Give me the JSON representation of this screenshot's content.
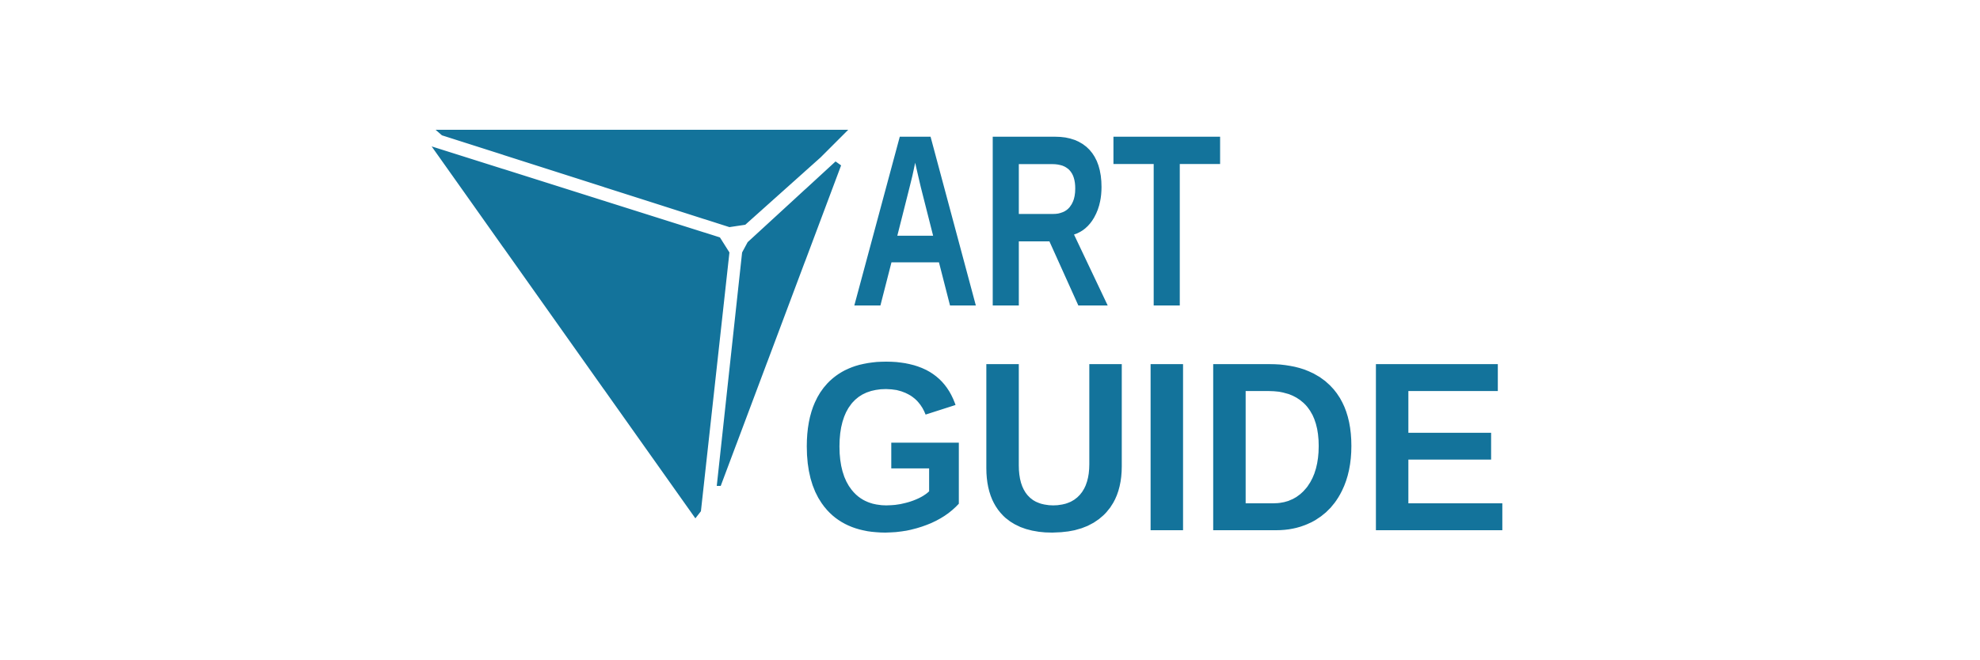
{
  "logo": {
    "line1": "ART",
    "line2": "GUIDE"
  }
}
